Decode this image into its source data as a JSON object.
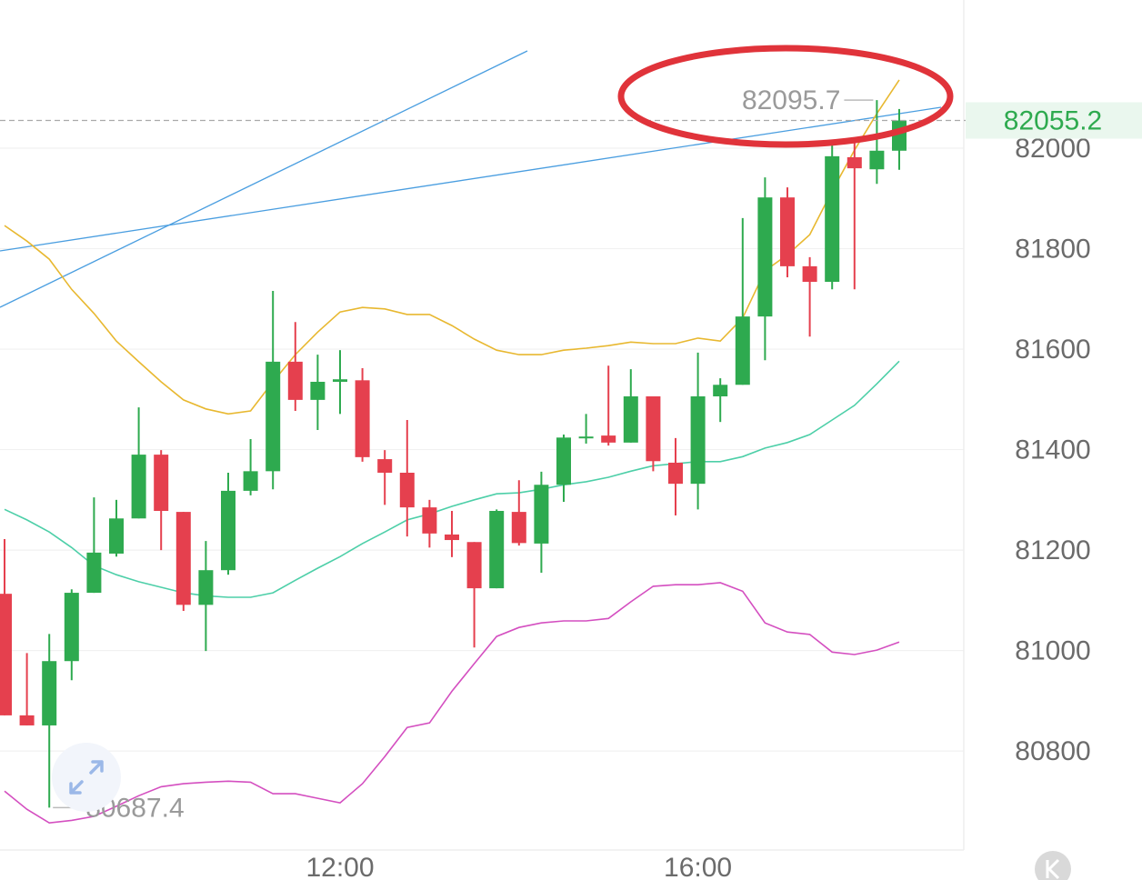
{
  "chart_data": {
    "type": "candlestick",
    "categories": [
      null,
      null,
      null,
      null,
      null,
      null,
      null,
      null,
      null,
      null,
      null,
      null,
      null,
      null,
      null,
      "12:00",
      null,
      null,
      null,
      null,
      null,
      null,
      null,
      null,
      null,
      null,
      null,
      null,
      null,
      null,
      null,
      "16:00",
      null,
      null,
      null,
      null,
      null,
      null,
      null,
      null,
      null
    ],
    "open": [
      81113,
      80871,
      80851,
      80979,
      81115,
      81193,
      81263,
      81390,
      81276,
      81091,
      81160,
      81318,
      81357,
      81575,
      81499,
      81535,
      81538,
      81381,
      81354,
      81285,
      81231,
      81216,
      81124,
      81276,
      81213,
      81330,
      81423,
      81428,
      81414,
      81506,
      81374,
      81332,
      81506,
      81529,
      81665,
      81902,
      81765,
      81734,
      81982,
      81958,
      81995
    ],
    "high": [
      81222,
      80995,
      81033,
      81122,
      81305,
      81300,
      81484,
      81399,
      81276,
      81218,
      81354,
      81421,
      81716,
      81654,
      81589,
      81598,
      81562,
      81399,
      81459,
      81300,
      81278,
      81216,
      81281,
      81339,
      81356,
      81430,
      81471,
      81567,
      81560,
      81506,
      81423,
      81593,
      81542,
      81861,
      81942,
      81922,
      81783,
      82014,
      82011,
      82095.7,
      82078
    ],
    "low": [
      80871,
      80851,
      80687.4,
      80941,
      81115,
      81187,
      81263,
      81200,
      81079,
      80999,
      81151,
      81309,
      81321,
      81477,
      81439,
      81471,
      81376,
      81290,
      81227,
      81205,
      81186,
      81006,
      81124,
      81209,
      81155,
      81296,
      81412,
      81408,
      81414,
      81357,
      81269,
      81281,
      81455,
      81529,
      81578,
      81743,
      81625,
      81719,
      81719,
      81929,
      81957
    ],
    "close": [
      80871,
      80851,
      80979,
      81115,
      81195,
      81263,
      81390,
      81278,
      81091,
      81160,
      81318,
      81357,
      81575,
      81499,
      81535,
      81540,
      81385,
      81354,
      81285,
      81233,
      81220,
      81124,
      81278,
      81214,
      81330,
      81424,
      81426,
      81414,
      81506,
      81377,
      81332,
      81506,
      81529,
      81665,
      81902,
      81765,
      81734,
      81984,
      81960,
      81995,
      82055.2
    ],
    "up_color": "#2eaa4f",
    "down_color": "#e5404e",
    "series": [
      {
        "color": "#e8b830",
        "values": [
          81846,
          81815,
          81779,
          81719,
          81671,
          81616,
          81575,
          81535,
          81499,
          81481,
          81471,
          81477,
          81535,
          81589,
          81634,
          81674,
          81683,
          81680,
          81669,
          81669,
          81647,
          81620,
          81598,
          81589,
          81589,
          81598,
          81602,
          81607,
          81614,
          81611,
          81611,
          81622,
          81616,
          81662,
          81756,
          81788,
          81828,
          81915,
          81996,
          82069,
          82136
        ]
      },
      {
        "color": "#4dcfa8",
        "values": [
          81281,
          81260,
          81236,
          81205,
          81169,
          81151,
          81137,
          81126,
          81115,
          81109,
          81106,
          81106,
          81115,
          81140,
          81164,
          81187,
          81213,
          81236,
          81260,
          81272,
          81287,
          81300,
          81312,
          81314,
          81321,
          81330,
          81336,
          81345,
          81357,
          81368,
          81372,
          81376,
          81376,
          81386,
          81403,
          81414,
          81430,
          81459,
          81488,
          81531,
          81576
        ]
      },
      {
        "color": "#d44fc0",
        "values": [
          80720,
          80684,
          80657,
          80662,
          80670,
          80690,
          80711,
          80729,
          80735,
          80738,
          80740,
          80738,
          80715,
          80715,
          80706,
          80697,
          80735,
          80789,
          80847,
          80856,
          80919,
          80974,
          81028,
          81046,
          81055,
          81059,
          81059,
          81064,
          81097,
          81128,
          81131,
          81131,
          81135,
          81118,
          81055,
          81037,
          81032,
          80997,
          80992,
          81001,
          81017
        ]
      }
    ],
    "ylim": [
      80603,
      82295
    ],
    "yticks": [
      80800,
      81000,
      81200,
      81400,
      81600,
      81800,
      82000
    ],
    "grid": true
  }
}
